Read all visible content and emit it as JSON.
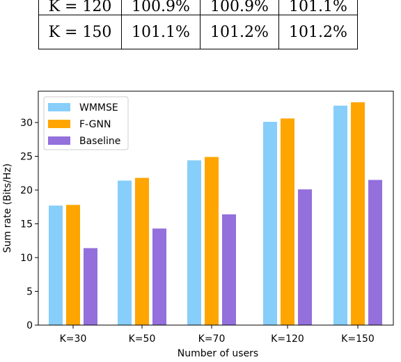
{
  "table": {
    "rows": [
      {
        "label": "K = 120",
        "values": [
          "100.9%",
          "100.9%",
          "101.1%"
        ]
      },
      {
        "label": "K = 150",
        "values": [
          "101.1%",
          "101.2%",
          "101.2%"
        ]
      }
    ]
  },
  "chart_data": {
    "type": "bar",
    "title": "",
    "xlabel": "Number of users",
    "ylabel": "Sum rate (Bits/Hz)",
    "categories": [
      "K=30",
      "K=50",
      "K=70",
      "K=120",
      "K=150"
    ],
    "series": [
      {
        "name": "WMMSE",
        "color": "#87CEFA",
        "values": [
          17.7,
          21.4,
          24.4,
          30.1,
          32.5
        ]
      },
      {
        "name": "F-GNN",
        "color": "#FFA500",
        "values": [
          17.8,
          21.8,
          24.9,
          30.6,
          33.0
        ]
      },
      {
        "name": "Baseline",
        "color": "#9370DB",
        "values": [
          11.4,
          14.3,
          16.4,
          20.1,
          21.5
        ]
      }
    ],
    "ylim": [
      0,
      34
    ],
    "yticks": [
      0,
      5,
      10,
      15,
      20,
      25,
      30
    ],
    "grid": false,
    "legend_position": "top-left"
  }
}
